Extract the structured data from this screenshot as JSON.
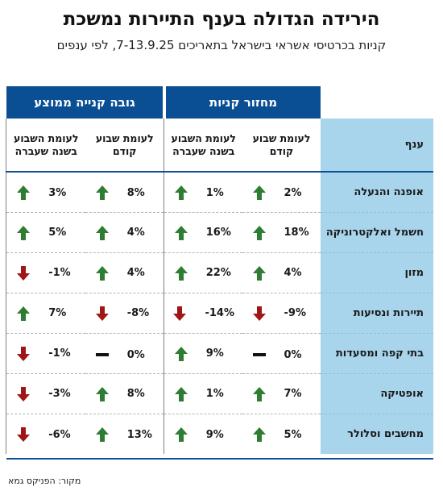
{
  "title": "הירידה הגדולה בענף התיירות נמשכת",
  "subtitle": "קניות בכרטיסי אשראי בישראל בתאריכים 7-13.9.25, לפי ענפים",
  "source": "מקור: הפניקס גמא",
  "colors": {
    "header_blue": "#0a4f93",
    "branch_bg": "#a8d4ec",
    "up": "#2e7d32",
    "down": "#a01515",
    "flat": "#111111"
  },
  "chart_data": {
    "type": "table",
    "groups": [
      "מחזור קניות",
      "גובה קנייה ממוצע"
    ],
    "branch_header": "ענף",
    "column_headers": [
      "לעומת שבוע קודם",
      "לעומת השבוע בשנה שעברה",
      "לעומת שבוע קודם",
      "לעומת השבוע בשנה שעברה"
    ],
    "rows": [
      {
        "branch": "אופנה והנעלה",
        "values": [
          2,
          1,
          8,
          3
        ],
        "labels": [
          "2%",
          "1%",
          "8%",
          "3%"
        ],
        "trend": [
          "up",
          "up",
          "up",
          "up"
        ]
      },
      {
        "branch": "חשמל ואלקטרוניקה",
        "values": [
          18,
          16,
          4,
          5
        ],
        "labels": [
          "18%",
          "16%",
          "4%",
          "5%"
        ],
        "trend": [
          "up",
          "up",
          "up",
          "up"
        ]
      },
      {
        "branch": "מזון",
        "values": [
          4,
          22,
          4,
          -1
        ],
        "labels": [
          "4%",
          "22%",
          "4%",
          "-1%"
        ],
        "trend": [
          "up",
          "up",
          "up",
          "down"
        ]
      },
      {
        "branch": "תיירות ונסיעות",
        "values": [
          -9,
          -14,
          -8,
          7
        ],
        "labels": [
          "-9%",
          "-14%",
          "-8%",
          "7%"
        ],
        "trend": [
          "down",
          "down",
          "down",
          "up"
        ]
      },
      {
        "branch": "בתי קפה ומסעדות",
        "values": [
          0,
          9,
          0,
          -1
        ],
        "labels": [
          "0%",
          "9%",
          "0%",
          "-1%"
        ],
        "trend": [
          "flat",
          "up",
          "flat",
          "down"
        ]
      },
      {
        "branch": "אופטיקה",
        "values": [
          7,
          1,
          8,
          -3
        ],
        "labels": [
          "7%",
          "1%",
          "8%",
          "-3%"
        ],
        "trend": [
          "up",
          "up",
          "up",
          "down"
        ]
      },
      {
        "branch": "מחשבים וסלולר",
        "values": [
          5,
          9,
          13,
          -6
        ],
        "labels": [
          "5%",
          "9%",
          "13%",
          "-6%"
        ],
        "trend": [
          "up",
          "up",
          "up",
          "down"
        ]
      }
    ]
  }
}
